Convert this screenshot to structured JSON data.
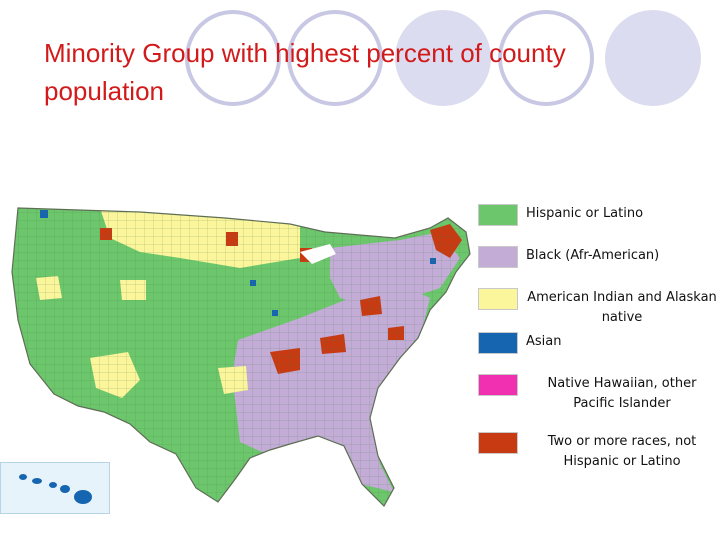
{
  "slide": {
    "title": "Minority Group with highest percent of county population"
  },
  "legend": {
    "items": [
      {
        "label": "Hispanic or Latino",
        "color": "#6cc66c"
      },
      {
        "label": "Black (Afr-American)",
        "color": "#c3acd6"
      },
      {
        "label": "American Indian and Alaskan native",
        "color": "#fbf59b"
      },
      {
        "label": "Asian",
        "color": "#1565b0"
      },
      {
        "label": "Native Hawaiian, other Pacific Islander",
        "color": "#f02fb1"
      },
      {
        "label": "Two or more races, not Hispanic or Latino",
        "color": "#c73a12"
      }
    ]
  },
  "colors": {
    "title": "#d21a1a",
    "circle_stroke": "#c8c8e4",
    "circle_fill": "#dcdcf0",
    "map_border": "#5e6e55"
  }
}
